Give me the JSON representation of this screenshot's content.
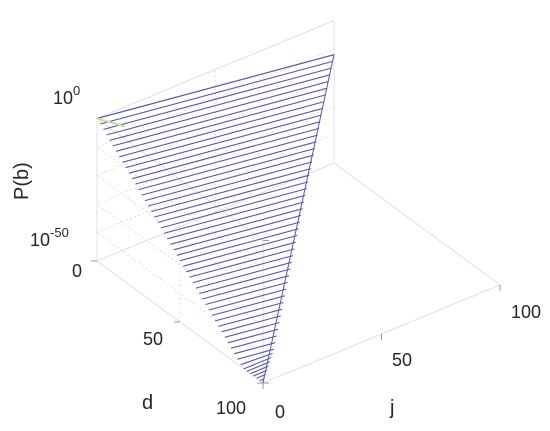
{
  "chart_data": {
    "type": "mesh3d",
    "x_axis": {
      "label": "j",
      "ticks": [
        0,
        50,
        100
      ],
      "range": [
        0,
        100
      ]
    },
    "y_axis": {
      "label": "d",
      "ticks": [
        0,
        50,
        100
      ],
      "range": [
        0,
        100
      ]
    },
    "z_axis": {
      "label": "P(b)",
      "scale": "log",
      "range_exponent": [
        -50,
        0
      ],
      "ticks": [
        {
          "base": "10",
          "exponent": "-50"
        },
        {
          "base": "10",
          "exponent": "0"
        }
      ]
    },
    "surface": {
      "description_constraint": "P(b) defined only for j + d <= 100",
      "corner_values_log10": [
        {
          "j": 0,
          "d": 0,
          "log10_P": 0
        },
        {
          "j": 100,
          "d": 0,
          "log10_P": -12
        },
        {
          "j": 0,
          "d": 100,
          "log10_P": -57
        }
      ],
      "line_count": 52
    },
    "grid": true,
    "colors": {
      "mesh": "#5a55b4",
      "highlight": "#c8e08a",
      "box": "#e0e0e0",
      "text": "#262626"
    }
  }
}
